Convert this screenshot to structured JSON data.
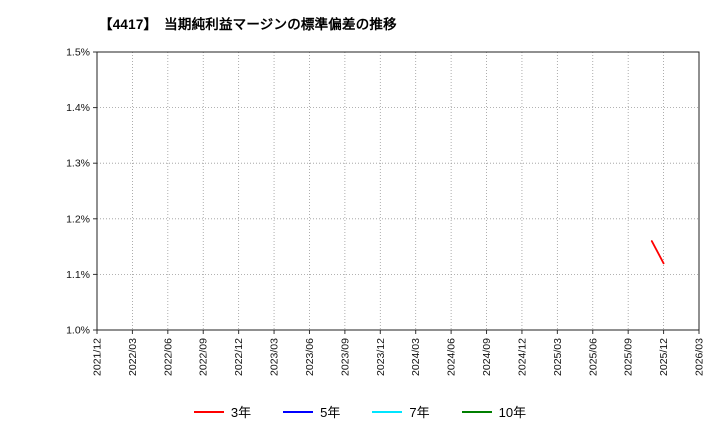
{
  "title": "【4417】　当期純利益マージンの標準偏差の推移",
  "chart_data": {
    "type": "line",
    "title": "【4417】　当期純利益マージンの標準偏差の推移",
    "xlabel": "",
    "ylabel": "",
    "x_ticks": [
      "2021/12",
      "2022/03",
      "2022/06",
      "2022/09",
      "2022/12",
      "2023/03",
      "2023/06",
      "2023/09",
      "2023/12",
      "2024/03",
      "2024/06",
      "2024/09",
      "2024/12",
      "2025/03",
      "2025/06",
      "2025/09",
      "2025/12",
      "2026/03"
    ],
    "y_ticks": [
      "1.0%",
      "1.1%",
      "1.2%",
      "1.3%",
      "1.4%",
      "1.5%"
    ],
    "ylim": [
      1.0,
      1.5
    ],
    "grid": true,
    "grid_style": "dotted",
    "legend_position": "bottom",
    "series": [
      {
        "name": "3年",
        "color": "#ff0000",
        "points": [
          {
            "x": "2025/11",
            "y": 1.16
          },
          {
            "x": "2025/12",
            "y": 1.12
          }
        ]
      },
      {
        "name": "5年",
        "color": "#0000ff",
        "points": []
      },
      {
        "name": "7年",
        "color": "#00e5ff",
        "points": []
      },
      {
        "name": "10年",
        "color": "#007f00",
        "points": []
      }
    ]
  }
}
